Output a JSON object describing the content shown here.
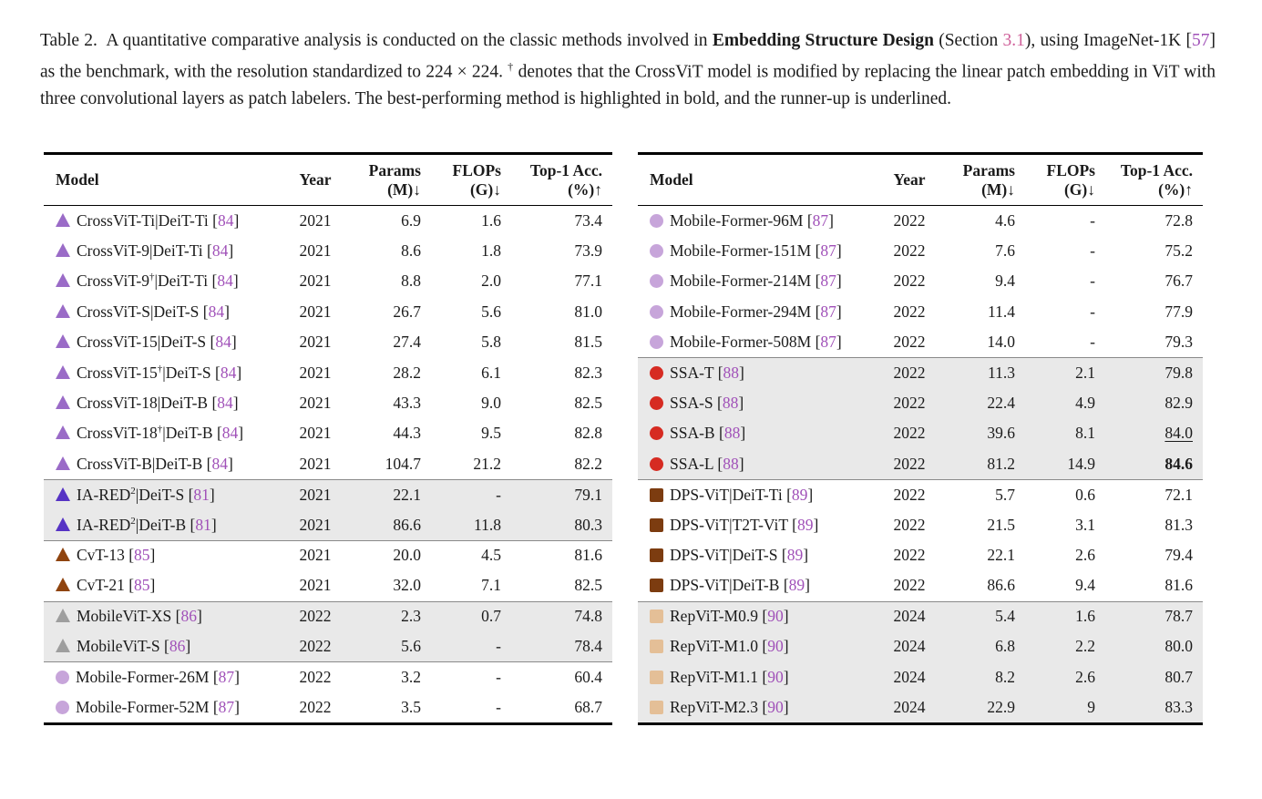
{
  "colors": {
    "section_link": "#cf5f99",
    "citation_link": "#a050b8",
    "shaded_row": "#e9e9e9",
    "crossvit_purple": "#9a6bc7",
    "iared_violet": "#5633c4",
    "cvt_brown": "#8f440f",
    "mobilevit_gray": "#9e9e9e",
    "mobileformer_lilac": "#c7a5da",
    "ssa_red": "#d62b22",
    "dpsvit_darkbrown": "#7c3c10",
    "repvit_tan": "#e4bf97"
  },
  "caption": {
    "segments": [
      {
        "text": "Table 2.  A quantitative comparative analysis is conducted on the classic methods involved in "
      },
      {
        "text": "Embedding Structure Design",
        "bold": true
      },
      {
        "text": " (Section "
      },
      {
        "text": "3.1",
        "color": "#cf5f99",
        "link": true,
        "name": "section-link"
      },
      {
        "text": "), using ImageNet-1K ["
      },
      {
        "text": "57",
        "color": "#a050b8",
        "link": true,
        "name": "citation-link"
      },
      {
        "text": "] as the benchmark, with the resolution standardized to 224 × 224. "
      },
      {
        "text": "†",
        "sup": true
      },
      {
        "text": " denotes that the CrossViT model is modified by replacing the linear patch embedding in ViT with three convolutional layers as patch labelers. The best-performing method is highlighted in bold, and the runner-up is underlined."
      }
    ]
  },
  "header": {
    "model": "Model",
    "year": "Year",
    "params_l1": "Params",
    "params_l2": "(M)↓",
    "flops_l1": "FLOPs",
    "flops_l2": "(G)↓",
    "acc_l1": "Top-1 Acc.",
    "acc_l2": "(%)↑"
  },
  "tables": {
    "left": {
      "rows": [
        {
          "marker": {
            "shape": "triangle",
            "color": "#9a6bc7"
          },
          "name": "CrossViT-Ti|DeiT-Ti",
          "sup": "",
          "rest": "",
          "ref": "84",
          "year": "2021",
          "params": "6.9",
          "flops": "1.6",
          "acc": "73.4"
        },
        {
          "marker": {
            "shape": "triangle",
            "color": "#9a6bc7"
          },
          "name": "CrossViT-9|DeiT-Ti",
          "sup": "",
          "rest": "",
          "ref": "84",
          "year": "2021",
          "params": "8.6",
          "flops": "1.8",
          "acc": "73.9"
        },
        {
          "marker": {
            "shape": "triangle",
            "color": "#9a6bc7"
          },
          "name": "CrossViT-9",
          "sup": "†",
          "rest": "|DeiT-Ti",
          "ref": "84",
          "year": "2021",
          "params": "8.8",
          "flops": "2.0",
          "acc": "77.1"
        },
        {
          "marker": {
            "shape": "triangle",
            "color": "#9a6bc7"
          },
          "name": "CrossViT-S|DeiT-S",
          "sup": "",
          "rest": "",
          "ref": "84",
          "year": "2021",
          "params": "26.7",
          "flops": "5.6",
          "acc": "81.0"
        },
        {
          "marker": {
            "shape": "triangle",
            "color": "#9a6bc7"
          },
          "name": "CrossViT-15|DeiT-S",
          "sup": "",
          "rest": "",
          "ref": "84",
          "year": "2021",
          "params": "27.4",
          "flops": "5.8",
          "acc": "81.5"
        },
        {
          "marker": {
            "shape": "triangle",
            "color": "#9a6bc7"
          },
          "name": "CrossViT-15",
          "sup": "†",
          "rest": "|DeiT-S",
          "ref": "84",
          "year": "2021",
          "params": "28.2",
          "flops": "6.1",
          "acc": "82.3"
        },
        {
          "marker": {
            "shape": "triangle",
            "color": "#9a6bc7"
          },
          "name": "CrossViT-18|DeiT-B",
          "sup": "",
          "rest": "",
          "ref": "84",
          "year": "2021",
          "params": "43.3",
          "flops": "9.0",
          "acc": "82.5"
        },
        {
          "marker": {
            "shape": "triangle",
            "color": "#9a6bc7"
          },
          "name": "CrossViT-18",
          "sup": "†",
          "rest": "|DeiT-B",
          "ref": "84",
          "year": "2021",
          "params": "44.3",
          "flops": "9.5",
          "acc": "82.8"
        },
        {
          "marker": {
            "shape": "triangle",
            "color": "#9a6bc7"
          },
          "name": "CrossViT-B|DeiT-B",
          "sup": "",
          "rest": "",
          "ref": "84",
          "year": "2021",
          "params": "104.7",
          "flops": "21.2",
          "acc": "82.2"
        },
        {
          "marker": {
            "shape": "triangle",
            "color": "#5633c4"
          },
          "name": "IA-RED",
          "sup": "2",
          "rest": "|DeiT-S",
          "ref": "81",
          "year": "2021",
          "params": "22.1",
          "flops": "-",
          "acc": "79.1",
          "shaded": true,
          "sep": true
        },
        {
          "marker": {
            "shape": "triangle",
            "color": "#5633c4"
          },
          "name": "IA-RED",
          "sup": "2",
          "rest": "|DeiT-B",
          "ref": "81",
          "year": "2021",
          "params": "86.6",
          "flops": "11.8",
          "acc": "80.3",
          "shaded": true
        },
        {
          "marker": {
            "shape": "triangle",
            "color": "#8f440f"
          },
          "name": "CvT-13",
          "sup": "",
          "rest": "",
          "ref": "85",
          "year": "2021",
          "params": "20.0",
          "flops": "4.5",
          "acc": "81.6",
          "sep": true
        },
        {
          "marker": {
            "shape": "triangle",
            "color": "#8f440f"
          },
          "name": "CvT-21",
          "sup": "",
          "rest": "",
          "ref": "85",
          "year": "2021",
          "params": "32.0",
          "flops": "7.1",
          "acc": "82.5"
        },
        {
          "marker": {
            "shape": "triangle",
            "color": "#9e9e9e"
          },
          "name": "MobileViT-XS",
          "sup": "",
          "rest": "",
          "ref": "86",
          "year": "2022",
          "params": "2.3",
          "flops": "0.7",
          "acc": "74.8",
          "shaded": true,
          "sep": true
        },
        {
          "marker": {
            "shape": "triangle",
            "color": "#9e9e9e"
          },
          "name": "MobileViT-S",
          "sup": "",
          "rest": "",
          "ref": "86",
          "year": "2022",
          "params": "5.6",
          "flops": "-",
          "acc": "78.4",
          "shaded": true
        },
        {
          "marker": {
            "shape": "circle",
            "color": "#c7a5da"
          },
          "name": "Mobile-Former-26M",
          "sup": "",
          "rest": "",
          "ref": "87",
          "year": "2022",
          "params": "3.2",
          "flops": "-",
          "acc": "60.4",
          "sep": true
        },
        {
          "marker": {
            "shape": "circle",
            "color": "#c7a5da"
          },
          "name": "Mobile-Former-52M",
          "sup": "",
          "rest": "",
          "ref": "87",
          "year": "2022",
          "params": "3.5",
          "flops": "-",
          "acc": "68.7"
        }
      ]
    },
    "right": {
      "rows": [
        {
          "marker": {
            "shape": "circle",
            "color": "#c7a5da"
          },
          "name": "Mobile-Former-96M",
          "sup": "",
          "rest": "",
          "ref": "87",
          "year": "2022",
          "params": "4.6",
          "flops": "-",
          "acc": "72.8"
        },
        {
          "marker": {
            "shape": "circle",
            "color": "#c7a5da"
          },
          "name": "Mobile-Former-151M",
          "sup": "",
          "rest": "",
          "ref": "87",
          "year": "2022",
          "params": "7.6",
          "flops": "-",
          "acc": "75.2"
        },
        {
          "marker": {
            "shape": "circle",
            "color": "#c7a5da"
          },
          "name": "Mobile-Former-214M",
          "sup": "",
          "rest": "",
          "ref": "87",
          "year": "2022",
          "params": "9.4",
          "flops": "-",
          "acc": "76.7"
        },
        {
          "marker": {
            "shape": "circle",
            "color": "#c7a5da"
          },
          "name": "Mobile-Former-294M",
          "sup": "",
          "rest": "",
          "ref": "87",
          "year": "2022",
          "params": "11.4",
          "flops": "-",
          "acc": "77.9"
        },
        {
          "marker": {
            "shape": "circle",
            "color": "#c7a5da"
          },
          "name": "Mobile-Former-508M",
          "sup": "",
          "rest": "",
          "ref": "87",
          "year": "2022",
          "params": "14.0",
          "flops": "-",
          "acc": "79.3"
        },
        {
          "marker": {
            "shape": "circle",
            "color": "#d62b22"
          },
          "name": "SSA-T",
          "sup": "",
          "rest": "",
          "ref": "88",
          "year": "2022",
          "params": "11.3",
          "flops": "2.1",
          "acc": "79.8",
          "shaded": true,
          "sep": true
        },
        {
          "marker": {
            "shape": "circle",
            "color": "#d62b22"
          },
          "name": "SSA-S",
          "sup": "",
          "rest": "",
          "ref": "88",
          "year": "2022",
          "params": "22.4",
          "flops": "4.9",
          "acc": "82.9",
          "shaded": true
        },
        {
          "marker": {
            "shape": "circle",
            "color": "#d62b22"
          },
          "name": "SSA-B",
          "sup": "",
          "rest": "",
          "ref": "88",
          "year": "2022",
          "params": "39.6",
          "flops": "8.1",
          "acc": "84.0",
          "shaded": true,
          "acc_underline": true
        },
        {
          "marker": {
            "shape": "circle",
            "color": "#d62b22"
          },
          "name": "SSA-L",
          "sup": "",
          "rest": "",
          "ref": "88",
          "year": "2022",
          "params": "81.2",
          "flops": "14.9",
          "acc": "84.6",
          "shaded": true,
          "acc_bold": true
        },
        {
          "marker": {
            "shape": "square",
            "color": "#7c3c10"
          },
          "name": "DPS-ViT|DeiT-Ti",
          "sup": "",
          "rest": "",
          "ref": "89",
          "year": "2022",
          "params": "5.7",
          "flops": "0.6",
          "acc": "72.1",
          "sep": true
        },
        {
          "marker": {
            "shape": "square",
            "color": "#7c3c10"
          },
          "name": "DPS-ViT|T2T-ViT",
          "sup": "",
          "rest": "",
          "ref": "89",
          "year": "2022",
          "params": "21.5",
          "flops": "3.1",
          "acc": "81.3"
        },
        {
          "marker": {
            "shape": "square",
            "color": "#7c3c10"
          },
          "name": "DPS-ViT|DeiT-S",
          "sup": "",
          "rest": "",
          "ref": "89",
          "year": "2022",
          "params": "22.1",
          "flops": "2.6",
          "acc": "79.4"
        },
        {
          "marker": {
            "shape": "square",
            "color": "#7c3c10"
          },
          "name": "DPS-ViT|DeiT-B",
          "sup": "",
          "rest": "",
          "ref": "89",
          "year": "2022",
          "params": "86.6",
          "flops": "9.4",
          "acc": "81.6"
        },
        {
          "marker": {
            "shape": "square",
            "color": "#e4bf97"
          },
          "name": "RepViT-M0.9",
          "sup": "",
          "rest": "",
          "ref": "90",
          "year": "2024",
          "params": "5.4",
          "flops": "1.6",
          "acc": "78.7",
          "shaded": true,
          "sep": true
        },
        {
          "marker": {
            "shape": "square",
            "color": "#e4bf97"
          },
          "name": "RepViT-M1.0",
          "sup": "",
          "rest": "",
          "ref": "90",
          "year": "2024",
          "params": "6.8",
          "flops": "2.2",
          "acc": "80.0",
          "shaded": true
        },
        {
          "marker": {
            "shape": "square",
            "color": "#e4bf97"
          },
          "name": "RepViT-M1.1",
          "sup": "",
          "rest": "",
          "ref": "90",
          "year": "2024",
          "params": "8.2",
          "flops": "2.6",
          "acc": "80.7",
          "shaded": true
        },
        {
          "marker": {
            "shape": "square",
            "color": "#e4bf97"
          },
          "name": "RepViT-M2.3",
          "sup": "",
          "rest": "",
          "ref": "90",
          "year": "2024",
          "params": "22.9",
          "flops": "9",
          "acc": "83.3",
          "shaded": true
        }
      ]
    }
  }
}
